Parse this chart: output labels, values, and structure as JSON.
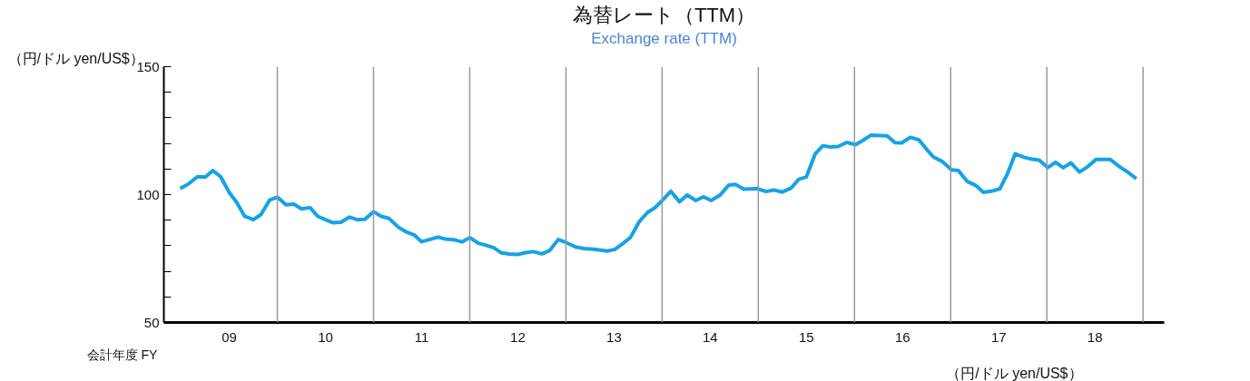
{
  "chart_data": {
    "type": "line",
    "title": "為替レート（TTM）",
    "subtitle": "Exchange rate (TTM)",
    "ylabel": "（円/ドル yen/US$）",
    "xlabel": "会計年度 FY",
    "annotations": [
      "（円/ドル yen/US$）"
    ],
    "xlim": [
      8.82,
      19.22
    ],
    "xticks": [
      {
        "value": 9.5,
        "label": "09"
      },
      {
        "value": 10.5,
        "label": "10"
      },
      {
        "value": 11.5,
        "label": "11"
      },
      {
        "value": 12.5,
        "label": "12"
      },
      {
        "value": 13.5,
        "label": "13"
      },
      {
        "value": 14.5,
        "label": "14"
      },
      {
        "value": 15.5,
        "label": "15"
      },
      {
        "value": 16.5,
        "label": "16"
      },
      {
        "value": 17.5,
        "label": "17"
      },
      {
        "value": 18.5,
        "label": "18"
      }
    ],
    "ylim": [
      50,
      150
    ],
    "yticks": [
      50,
      {
        "value": 60,
        "label": null
      },
      {
        "value": 70,
        "label": null
      },
      {
        "value": 80,
        "label": null
      },
      {
        "value": 90,
        "label": null
      },
      100,
      {
        "value": 110,
        "label": null
      },
      {
        "value": 120,
        "label": null
      },
      {
        "value": 130,
        "label": null
      },
      {
        "value": 140,
        "label": null
      },
      150
    ],
    "grid": false,
    "ref_lines": [
      {
        "axis": "x",
        "value": 10,
        "color": "#999999"
      },
      {
        "axis": "x",
        "value": 11,
        "color": "#999999"
      },
      {
        "axis": "x",
        "value": 12,
        "color": "#999999"
      },
      {
        "axis": "x",
        "value": 13,
        "color": "#999999"
      },
      {
        "axis": "x",
        "value": 14,
        "color": "#999999"
      },
      {
        "axis": "x",
        "value": 15,
        "color": "#999999"
      },
      {
        "axis": "x",
        "value": 16,
        "color": "#999999"
      },
      {
        "axis": "x",
        "value": 17,
        "color": "#999999"
      },
      {
        "axis": "x",
        "value": 18,
        "color": "#999999"
      },
      {
        "axis": "x",
        "value": 19,
        "color": "#999999"
      }
    ],
    "marker": "none",
    "line_style": "solid",
    "series": [
      {
        "color": "#17a2e3",
        "x": [
          8.99,
          9.07,
          9.17,
          9.25,
          9.33,
          9.41,
          9.5,
          9.58,
          9.66,
          9.75,
          9.83,
          9.92,
          10.0,
          10.09,
          10.17,
          10.25,
          10.34,
          10.42,
          10.5,
          10.58,
          10.66,
          10.75,
          10.83,
          10.91,
          11.0,
          11.08,
          11.16,
          11.26,
          11.34,
          11.42,
          11.5,
          11.58,
          11.67,
          11.75,
          11.83,
          11.92,
          12.0,
          12.09,
          12.17,
          12.25,
          12.33,
          12.41,
          12.5,
          12.58,
          12.66,
          12.75,
          12.83,
          12.92,
          13.0,
          13.1,
          13.19,
          13.29,
          13.43,
          13.51,
          13.58,
          13.67,
          13.76,
          13.85,
          13.92,
          14.0,
          14.09,
          14.18,
          14.26,
          14.35,
          14.43,
          14.51,
          14.6,
          14.69,
          14.76,
          14.85,
          14.99,
          15.08,
          15.16,
          15.25,
          15.34,
          15.42,
          15.5,
          15.59,
          15.67,
          15.75,
          15.83,
          15.92,
          16.01,
          16.08,
          16.17,
          16.34,
          16.42,
          16.49,
          16.58,
          16.67,
          16.75,
          16.82,
          16.91,
          17.01,
          17.08,
          17.17,
          17.26,
          17.34,
          17.42,
          17.51,
          17.59,
          17.67,
          17.77,
          17.85,
          17.92,
          18.01,
          18.09,
          18.17,
          18.25,
          18.34,
          18.42,
          18.51,
          18.66,
          18.76,
          18.84,
          18.93
        ],
        "values": [
          102.4,
          104.0,
          107.0,
          106.8,
          109.4,
          107.0,
          100.8,
          96.8,
          91.5,
          90.2,
          92.2,
          97.9,
          99.0,
          96.0,
          96.3,
          94.4,
          94.9,
          91.5,
          90.2,
          89.0,
          89.2,
          91.2,
          90.2,
          90.3,
          93.3,
          91.5,
          90.7,
          87.2,
          85.4,
          84.3,
          81.6,
          82.4,
          83.4,
          82.6,
          82.4,
          81.5,
          83.2,
          81.0,
          80.2,
          79.2,
          77.2,
          76.8,
          76.6,
          77.3,
          77.7,
          76.8,
          78.1,
          82.4,
          81.3,
          79.5,
          78.9,
          78.6,
          77.9,
          78.6,
          80.5,
          83.2,
          89.3,
          93.1,
          94.7,
          97.6,
          101.3,
          97.2,
          99.8,
          97.7,
          99.1,
          97.7,
          99.7,
          103.6,
          104.0,
          102.1,
          102.3,
          101.2,
          101.8,
          101.0,
          102.5,
          106.0,
          106.9,
          115.8,
          119.1,
          118.6,
          118.8,
          120.4,
          119.5,
          121.0,
          123.2,
          123.0,
          120.3,
          120.2,
          122.4,
          121.4,
          117.7,
          114.7,
          113.0,
          109.7,
          109.4,
          105.2,
          103.6,
          100.9,
          101.3,
          102.2,
          108.1,
          115.9,
          114.5,
          113.8,
          113.5,
          110.6,
          112.6,
          110.5,
          112.4,
          108.8,
          110.8,
          113.7,
          113.7,
          110.8,
          108.8,
          106.2
        ]
      }
    ]
  }
}
